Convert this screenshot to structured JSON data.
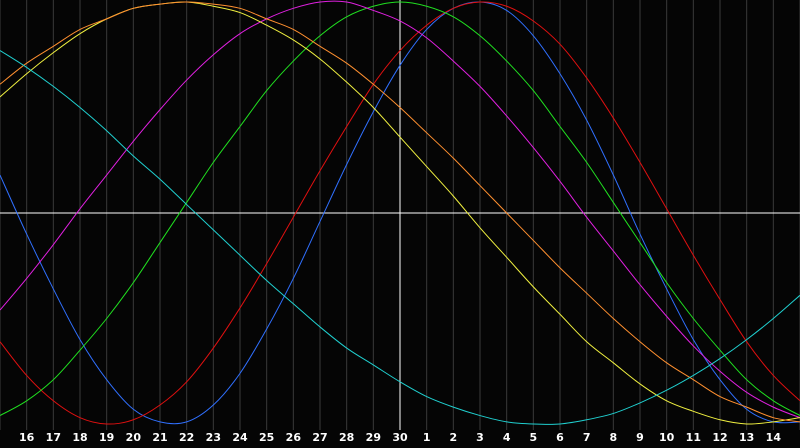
{
  "chart_data": {
    "type": "line",
    "categories": [
      null,
      "16",
      "17",
      "18",
      "19",
      "20",
      "21",
      "22",
      "23",
      "24",
      "25",
      "26",
      "27",
      "28",
      "29",
      "30",
      "1",
      "2",
      "3",
      "4",
      "5",
      "6",
      "7",
      "8",
      "9",
      "10",
      "11",
      "12",
      "13",
      "14",
      null
    ],
    "ylim": [
      -100,
      100
    ],
    "series": [
      {
        "color": "#3070ff",
        "values": [
          18,
          -10,
          -36,
          -60,
          -79,
          -93,
          -99,
          -99,
          -91,
          -76,
          -55,
          -31,
          -4,
          23,
          48,
          70,
          87,
          97,
          100,
          96,
          84,
          66,
          44,
          18,
          -10,
          -36,
          -60,
          -79,
          -93,
          -99,
          -99
        ]
      },
      {
        "color": "#e01010",
        "values": [
          -61,
          -77,
          -89,
          -97,
          -100,
          -98,
          -91,
          -80,
          -64,
          -45,
          -24,
          -2,
          20,
          41,
          61,
          77,
          89,
          97,
          100,
          98,
          91,
          80,
          64,
          45,
          24,
          2,
          -20,
          -41,
          -61,
          -77,
          -89
        ]
      },
      {
        "color": "#20e020",
        "values": [
          -96,
          -89,
          -79,
          -65,
          -50,
          -33,
          -14,
          5,
          24,
          41,
          58,
          72,
          84,
          93,
          98,
          100,
          98,
          93,
          84,
          72,
          58,
          41,
          24,
          5,
          -14,
          -33,
          -50,
          -65,
          -79,
          -89,
          -96
        ]
      },
      {
        "color": "#e020e0",
        "values": [
          -46,
          -31,
          -15,
          2,
          18,
          34,
          49,
          63,
          75,
          85,
          92,
          97,
          100,
          100,
          96,
          91,
          83,
          72,
          60,
          46,
          31,
          15,
          -2,
          -18,
          -34,
          -49,
          -63,
          -75,
          -85,
          -92,
          -97
        ]
      },
      {
        "color": "#f0f040",
        "values": [
          55,
          66,
          76,
          85,
          92,
          97,
          99,
          100,
          98,
          95,
          89,
          82,
          73,
          62,
          50,
          36,
          22,
          8,
          -7,
          -21,
          -35,
          -48,
          -61,
          -71,
          -81,
          -89,
          -94,
          -98,
          -100,
          -99,
          -97
        ]
      },
      {
        "color": "#ff9030",
        "values": [
          61,
          71,
          79,
          87,
          92,
          97,
          99,
          100,
          99,
          97,
          92,
          87,
          79,
          71,
          61,
          50,
          38,
          26,
          13,
          0,
          -13,
          -26,
          -38,
          -50,
          -61,
          -71,
          -79,
          -87,
          -92,
          -97,
          -99
        ]
      },
      {
        "color": "#20d0d0",
        "values": [
          77,
          69,
          60,
          50,
          39,
          27,
          16,
          4,
          -8,
          -20,
          -32,
          -43,
          -54,
          -64,
          -72,
          -80,
          -87,
          -92,
          -96,
          -99,
          -100,
          -100,
          -98,
          -95,
          -90,
          -84,
          -77,
          -69,
          -60,
          -50,
          -39
        ]
      }
    ]
  }
}
